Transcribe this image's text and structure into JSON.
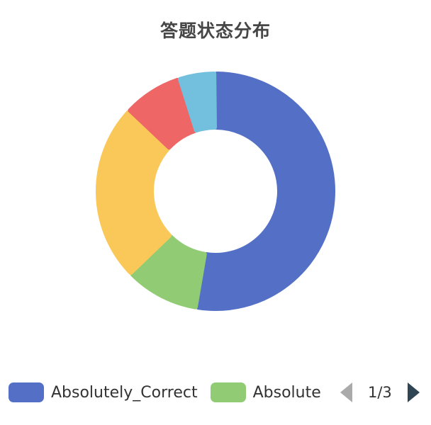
{
  "chart_data": {
    "type": "pie",
    "variant": "donut",
    "title": "答题状态分布",
    "series": [
      {
        "name": "Absolutely_Correct",
        "value": 52,
        "color": "#5470c6"
      },
      {
        "name": "Absolute",
        "value": 10,
        "color": "#91cc75"
      },
      {
        "value": 24,
        "color": "#fac858"
      },
      {
        "value": 8,
        "color": "#ee6666"
      },
      {
        "value": 5,
        "color": "#73c0de"
      }
    ],
    "legend_visible_count": 2,
    "legend_placement": "bottom"
  },
  "legend": {
    "pager": {
      "page_label": "1/3",
      "prev_icon": "triangle-left-icon",
      "next_icon": "triangle-right-icon",
      "prev_color": "#aaaaaa",
      "next_color": "#2f4554"
    }
  }
}
